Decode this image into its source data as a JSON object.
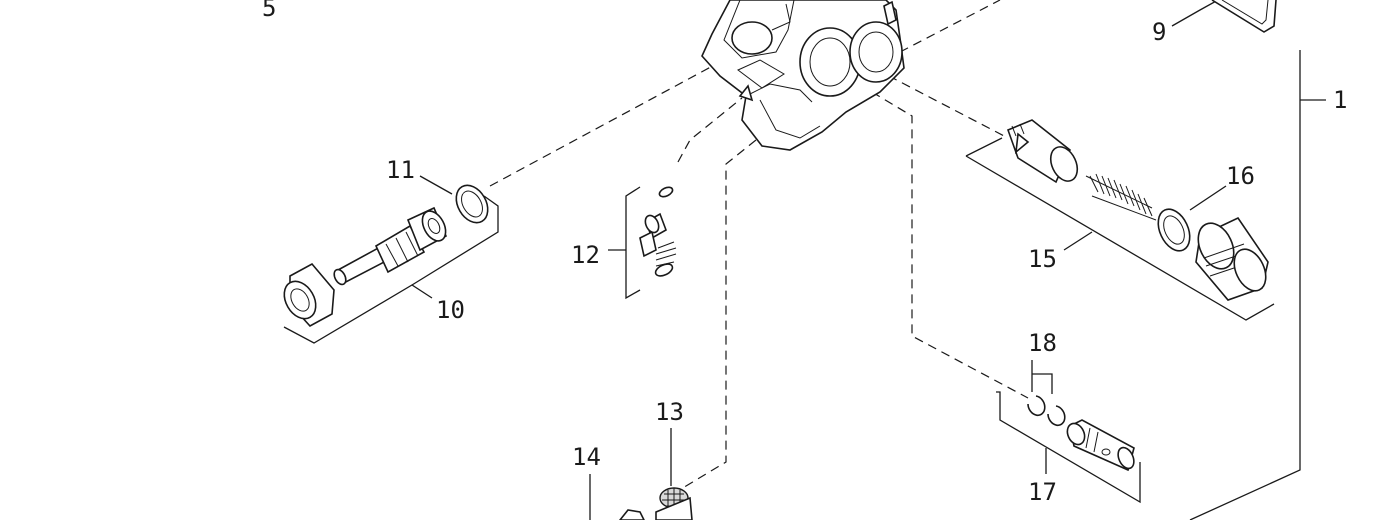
{
  "diagram": {
    "callouts": [
      {
        "id": "c1",
        "text": "1"
      },
      {
        "id": "c5",
        "text": "5"
      },
      {
        "id": "c9",
        "text": "9"
      },
      {
        "id": "c10",
        "text": "10"
      },
      {
        "id": "c11",
        "text": "11"
      },
      {
        "id": "c12",
        "text": "12"
      },
      {
        "id": "c13",
        "text": "13"
      },
      {
        "id": "c14",
        "text": "14"
      },
      {
        "id": "c15",
        "text": "15"
      },
      {
        "id": "c16",
        "text": "16"
      },
      {
        "id": "c17",
        "text": "17"
      },
      {
        "id": "c18",
        "text": "18"
      }
    ]
  }
}
